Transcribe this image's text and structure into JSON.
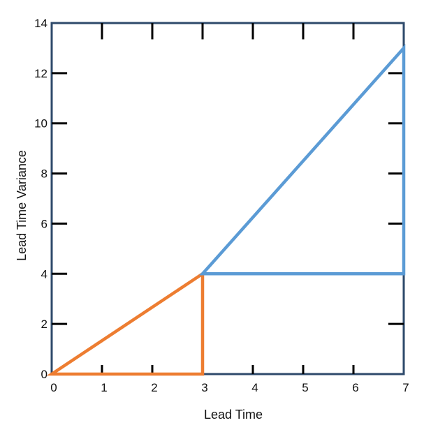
{
  "chart_data": {
    "type": "line",
    "title": "",
    "xlabel": "Lead Time",
    "ylabel": "Lead Time Variance",
    "xlim": [
      0,
      7
    ],
    "ylim": [
      0,
      14
    ],
    "x_ticks": [
      0,
      1,
      2,
      3,
      4,
      5,
      6,
      7
    ],
    "y_ticks": [
      0,
      2,
      4,
      6,
      8,
      10,
      12,
      14
    ],
    "x_tick_labels": [
      "0",
      "1",
      "2",
      "3",
      "4",
      "5",
      "6",
      "7"
    ],
    "y_tick_labels": [
      "0",
      "2",
      "4",
      "6",
      "8",
      "10",
      "12",
      "14"
    ],
    "grid": false,
    "legend": "none",
    "frame_color": "#2e4a6b",
    "series": [
      {
        "color": "#ed7d31",
        "closed": true,
        "points": [
          [
            0,
            0
          ],
          [
            3,
            4
          ],
          [
            3,
            0
          ]
        ]
      },
      {
        "color": "#5b9bd5",
        "closed": true,
        "points": [
          [
            3,
            4
          ],
          [
            7,
            13
          ],
          [
            7,
            4
          ]
        ]
      }
    ]
  }
}
